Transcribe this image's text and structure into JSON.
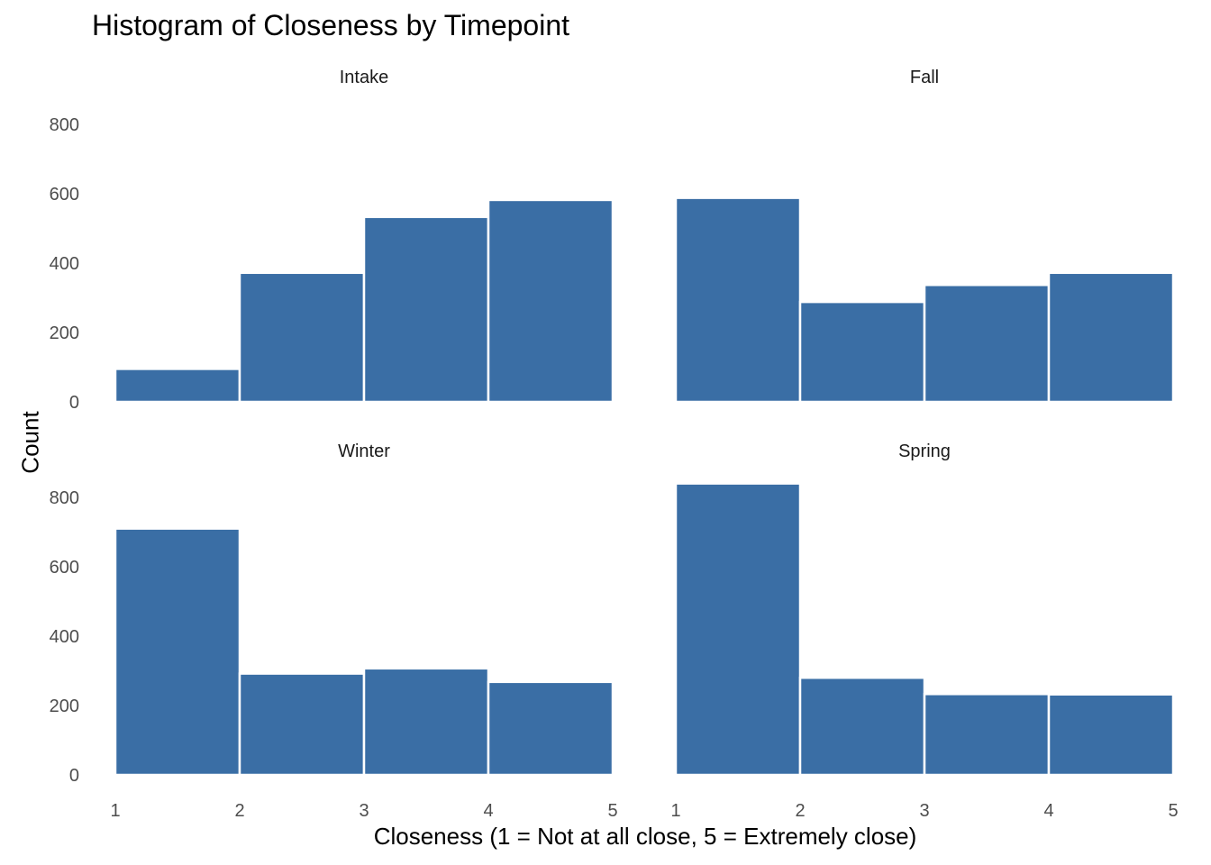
{
  "chart_data": {
    "type": "bar",
    "title": "Histogram of Closeness by Timepoint",
    "xlabel": "Closeness (1 = Not at all close, 5 = Extremely close)",
    "ylabel": "Count",
    "bins": [
      [
        1,
        2
      ],
      [
        2,
        3
      ],
      [
        3,
        4
      ],
      [
        4,
        5
      ]
    ],
    "x_ticks": [
      1,
      2,
      3,
      4,
      5
    ],
    "y_ticks": [
      0,
      200,
      400,
      600,
      800
    ],
    "xlim": [
      1,
      5
    ],
    "ylim": [
      0,
      800
    ],
    "grid": false,
    "bar_color": "#3A6EA5",
    "panels": [
      {
        "name": "Intake",
        "values": [
          95,
          372,
          533,
          582
        ]
      },
      {
        "name": "Fall",
        "values": [
          588,
          288,
          337,
          372
        ]
      },
      {
        "name": "Winter",
        "values": [
          710,
          292,
          307,
          268
        ]
      },
      {
        "name": "Spring",
        "values": [
          840,
          280,
          233,
          232
        ]
      }
    ]
  }
}
